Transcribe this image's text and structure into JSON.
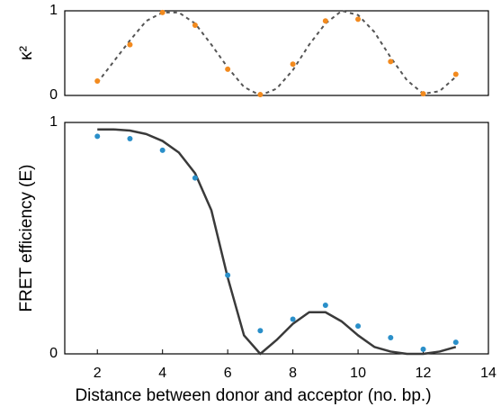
{
  "chart_data": [
    {
      "type": "scatter-line",
      "y_label": "κ²",
      "xlim": [
        1,
        14
      ],
      "ylim": [
        0,
        1
      ],
      "yticks": [
        0,
        1
      ],
      "series": [
        {
          "color": "#555555",
          "style": "dashed",
          "x": [
            2,
            2.5,
            3,
            3.5,
            4,
            4.5,
            5,
            5.5,
            6,
            6.5,
            7,
            7.5,
            8,
            8.5,
            9,
            9.5,
            10,
            10.5,
            11,
            11.5,
            12,
            12.5,
            13
          ],
          "values": [
            0.15,
            0.4,
            0.65,
            0.88,
            0.98,
            0.98,
            0.85,
            0.6,
            0.33,
            0.1,
            0.0,
            0.08,
            0.3,
            0.6,
            0.85,
            1.0,
            0.95,
            0.75,
            0.45,
            0.18,
            0.02,
            0.05,
            0.22
          ]
        },
        {
          "color": "#f28a1e",
          "style": "points",
          "x": [
            2,
            3,
            4,
            5,
            6,
            7,
            8,
            9,
            10,
            11,
            12,
            13
          ],
          "values": [
            0.17,
            0.6,
            0.98,
            0.83,
            0.31,
            0.01,
            0.37,
            0.88,
            0.9,
            0.4,
            0.02,
            0.25
          ]
        }
      ]
    },
    {
      "type": "scatter-line",
      "y_label": "FRET efficiency (E)",
      "x_label": "Distance between donor and acceptor (no. bp.)",
      "xlim": [
        1,
        14
      ],
      "xticks": [
        2,
        4,
        6,
        8,
        10,
        12,
        14
      ],
      "ylim": [
        0,
        1
      ],
      "yticks": [
        0,
        1
      ],
      "series": [
        {
          "color": "#3a3a3a",
          "style": "solid",
          "x": [
            2,
            2.5,
            3,
            3.5,
            4,
            4.5,
            5,
            5.5,
            6,
            6.5,
            7,
            7.5,
            8,
            8.5,
            9,
            9.5,
            10,
            10.5,
            11,
            11.5,
            12,
            12.5,
            13
          ],
          "values": [
            0.97,
            0.97,
            0.965,
            0.95,
            0.92,
            0.87,
            0.78,
            0.62,
            0.33,
            0.08,
            0.0,
            0.06,
            0.13,
            0.18,
            0.18,
            0.14,
            0.08,
            0.03,
            0.01,
            0.0,
            0.0,
            0.01,
            0.03
          ]
        },
        {
          "color": "#2a8fc9",
          "style": "points",
          "x": [
            2,
            3,
            4,
            5,
            6,
            7,
            8,
            9,
            10,
            11,
            12,
            13
          ],
          "values": [
            0.94,
            0.93,
            0.88,
            0.76,
            0.34,
            0.1,
            0.15,
            0.21,
            0.12,
            0.07,
            0.02,
            0.05
          ]
        }
      ]
    }
  ]
}
